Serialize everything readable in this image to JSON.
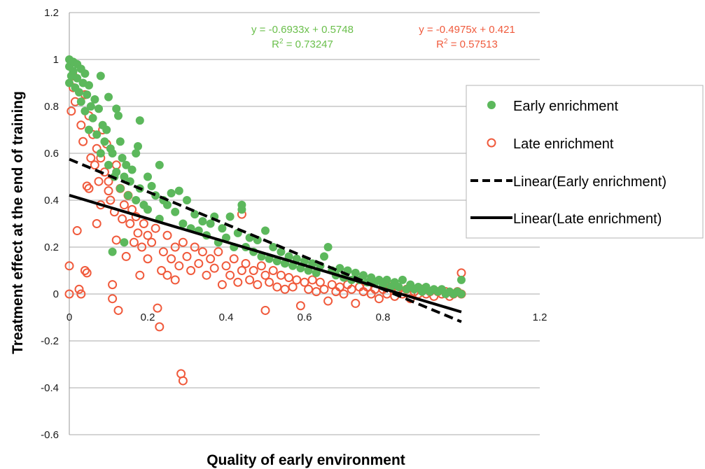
{
  "chart_data": {
    "type": "scatter",
    "title": "",
    "xlabel": "Quality of early environment",
    "ylabel": "Treatment effect at the end of training",
    "xlim": [
      0,
      1.2
    ],
    "ylim": [
      -0.6,
      1.2
    ],
    "x_ticks": [
      "0",
      "0.2",
      "0.4",
      "0.6",
      "0.8",
      "1.2"
    ],
    "y_ticks": [
      "1.2",
      "1",
      "0.8",
      "0.6",
      "0.4",
      "0.2",
      "0",
      "-0.2",
      "-0.4",
      "-0.6"
    ],
    "grid": "horizontal",
    "legend_position": "right",
    "series": [
      {
        "name": "Early enrichment",
        "marker": "filled-circle",
        "color": "#5cb85c",
        "points": [
          [
            0.0,
            1.0
          ],
          [
            0.0,
            0.97
          ],
          [
            0.0,
            0.9
          ],
          [
            0.005,
            0.93
          ],
          [
            0.01,
            0.99
          ],
          [
            0.01,
            0.95
          ],
          [
            0.015,
            0.88
          ],
          [
            0.02,
            0.98
          ],
          [
            0.02,
            0.92
          ],
          [
            0.025,
            0.86
          ],
          [
            0.03,
            0.96
          ],
          [
            0.03,
            0.82
          ],
          [
            0.035,
            0.9
          ],
          [
            0.04,
            0.94
          ],
          [
            0.04,
            0.78
          ],
          [
            0.045,
            0.85
          ],
          [
            0.05,
            0.89
          ],
          [
            0.05,
            0.7
          ],
          [
            0.055,
            0.8
          ],
          [
            0.06,
            0.75
          ],
          [
            0.065,
            0.83
          ],
          [
            0.07,
            0.68
          ],
          [
            0.075,
            0.79
          ],
          [
            0.08,
            0.93
          ],
          [
            0.08,
            0.6
          ],
          [
            0.085,
            0.72
          ],
          [
            0.09,
            0.65
          ],
          [
            0.095,
            0.7
          ],
          [
            0.1,
            0.84
          ],
          [
            0.1,
            0.55
          ],
          [
            0.105,
            0.62
          ],
          [
            0.11,
            0.6
          ],
          [
            0.11,
            0.18
          ],
          [
            0.115,
            0.5
          ],
          [
            0.12,
            0.79
          ],
          [
            0.12,
            0.52
          ],
          [
            0.125,
            0.76
          ],
          [
            0.13,
            0.65
          ],
          [
            0.13,
            0.45
          ],
          [
            0.135,
            0.58
          ],
          [
            0.14,
            0.22
          ],
          [
            0.14,
            0.5
          ],
          [
            0.145,
            0.55
          ],
          [
            0.15,
            0.42
          ],
          [
            0.155,
            0.48
          ],
          [
            0.16,
            0.53
          ],
          [
            0.17,
            0.6
          ],
          [
            0.17,
            0.4
          ],
          [
            0.175,
            0.63
          ],
          [
            0.18,
            0.74
          ],
          [
            0.18,
            0.45
          ],
          [
            0.19,
            0.38
          ],
          [
            0.2,
            0.5
          ],
          [
            0.2,
            0.36
          ],
          [
            0.21,
            0.46
          ],
          [
            0.22,
            0.42
          ],
          [
            0.23,
            0.55
          ],
          [
            0.23,
            0.32
          ],
          [
            0.24,
            0.4
          ],
          [
            0.25,
            0.38
          ],
          [
            0.26,
            0.43
          ],
          [
            0.27,
            0.35
          ],
          [
            0.28,
            0.44
          ],
          [
            0.29,
            0.3
          ],
          [
            0.3,
            0.4
          ],
          [
            0.31,
            0.28
          ],
          [
            0.32,
            0.34
          ],
          [
            0.33,
            0.27
          ],
          [
            0.34,
            0.31
          ],
          [
            0.35,
            0.25
          ],
          [
            0.36,
            0.3
          ],
          [
            0.37,
            0.33
          ],
          [
            0.38,
            0.22
          ],
          [
            0.39,
            0.28
          ],
          [
            0.4,
            0.24
          ],
          [
            0.41,
            0.33
          ],
          [
            0.42,
            0.2
          ],
          [
            0.43,
            0.26
          ],
          [
            0.44,
            0.38
          ],
          [
            0.44,
            0.36
          ],
          [
            0.45,
            0.2
          ],
          [
            0.46,
            0.24
          ],
          [
            0.47,
            0.18
          ],
          [
            0.48,
            0.23
          ],
          [
            0.49,
            0.16
          ],
          [
            0.5,
            0.27
          ],
          [
            0.51,
            0.15
          ],
          [
            0.52,
            0.2
          ],
          [
            0.53,
            0.14
          ],
          [
            0.54,
            0.18
          ],
          [
            0.55,
            0.13
          ],
          [
            0.56,
            0.16
          ],
          [
            0.57,
            0.12
          ],
          [
            0.58,
            0.15
          ],
          [
            0.59,
            0.11
          ],
          [
            0.6,
            0.14
          ],
          [
            0.61,
            0.1
          ],
          [
            0.62,
            0.13
          ],
          [
            0.63,
            0.09
          ],
          [
            0.64,
            0.12
          ],
          [
            0.65,
            0.16
          ],
          [
            0.66,
            0.2
          ],
          [
            0.67,
            0.1
          ],
          [
            0.68,
            0.08
          ],
          [
            0.69,
            0.11
          ],
          [
            0.7,
            0.07
          ],
          [
            0.71,
            0.1
          ],
          [
            0.72,
            0.06
          ],
          [
            0.73,
            0.09
          ],
          [
            0.74,
            0.06
          ],
          [
            0.75,
            0.08
          ],
          [
            0.76,
            0.05
          ],
          [
            0.77,
            0.07
          ],
          [
            0.78,
            0.05
          ],
          [
            0.79,
            0.06
          ],
          [
            0.8,
            0.04
          ],
          [
            0.81,
            0.06
          ],
          [
            0.82,
            0.03
          ],
          [
            0.83,
            0.05
          ],
          [
            0.84,
            0.03
          ],
          [
            0.85,
            0.06
          ],
          [
            0.86,
            0.02
          ],
          [
            0.87,
            0.04
          ],
          [
            0.88,
            0.02
          ],
          [
            0.89,
            0.03
          ],
          [
            0.9,
            0.01
          ],
          [
            0.91,
            0.03
          ],
          [
            0.92,
            0.01
          ],
          [
            0.93,
            0.02
          ],
          [
            0.94,
            0.01
          ],
          [
            0.95,
            0.02
          ],
          [
            0.96,
            0.0
          ],
          [
            0.97,
            0.01
          ],
          [
            0.98,
            0.0
          ],
          [
            0.99,
            0.01
          ],
          [
            1.0,
            0.06
          ],
          [
            1.0,
            0.0
          ]
        ]
      },
      {
        "name": "Late enrichment",
        "marker": "open-circle",
        "color": "#f05a3c",
        "points": [
          [
            0.0,
            0.12
          ],
          [
            0.0,
            0.0
          ],
          [
            0.005,
            0.78
          ],
          [
            0.01,
            0.93
          ],
          [
            0.01,
            0.88
          ],
          [
            0.015,
            0.82
          ],
          [
            0.02,
            0.27
          ],
          [
            0.025,
            0.02
          ],
          [
            0.03,
            0.72
          ],
          [
            0.03,
            0.0
          ],
          [
            0.035,
            0.65
          ],
          [
            0.04,
            0.85
          ],
          [
            0.04,
            0.1
          ],
          [
            0.045,
            0.46
          ],
          [
            0.045,
            0.09
          ],
          [
            0.05,
            0.76
          ],
          [
            0.05,
            0.45
          ],
          [
            0.055,
            0.58
          ],
          [
            0.06,
            0.68
          ],
          [
            0.065,
            0.55
          ],
          [
            0.07,
            0.62
          ],
          [
            0.07,
            0.3
          ],
          [
            0.075,
            0.48
          ],
          [
            0.08,
            0.58
          ],
          [
            0.08,
            0.38
          ],
          [
            0.085,
            0.7
          ],
          [
            0.09,
            0.52
          ],
          [
            0.095,
            0.64
          ],
          [
            0.1,
            0.44
          ],
          [
            0.1,
            0.48
          ],
          [
            0.105,
            0.4
          ],
          [
            0.11,
            0.04
          ],
          [
            0.11,
            -0.02
          ],
          [
            0.115,
            0.35
          ],
          [
            0.12,
            0.55
          ],
          [
            0.12,
            0.23
          ],
          [
            0.125,
            -0.07
          ],
          [
            0.13,
            0.45
          ],
          [
            0.135,
            0.32
          ],
          [
            0.14,
            0.38
          ],
          [
            0.145,
            0.16
          ],
          [
            0.15,
            0.42
          ],
          [
            0.155,
            0.3
          ],
          [
            0.16,
            0.36
          ],
          [
            0.165,
            0.22
          ],
          [
            0.17,
            0.33
          ],
          [
            0.175,
            0.26
          ],
          [
            0.18,
            0.08
          ],
          [
            0.185,
            0.2
          ],
          [
            0.19,
            0.3
          ],
          [
            0.2,
            0.25
          ],
          [
            0.2,
            0.15
          ],
          [
            0.21,
            0.22
          ],
          [
            0.22,
            0.28
          ],
          [
            0.225,
            -0.06
          ],
          [
            0.23,
            -0.14
          ],
          [
            0.235,
            0.1
          ],
          [
            0.24,
            0.18
          ],
          [
            0.25,
            0.08
          ],
          [
            0.25,
            0.25
          ],
          [
            0.26,
            0.15
          ],
          [
            0.27,
            0.2
          ],
          [
            0.27,
            0.06
          ],
          [
            0.28,
            0.12
          ],
          [
            0.285,
            -0.34
          ],
          [
            0.29,
            -0.37
          ],
          [
            0.29,
            0.22
          ],
          [
            0.3,
            0.16
          ],
          [
            0.31,
            0.1
          ],
          [
            0.32,
            0.2
          ],
          [
            0.33,
            0.13
          ],
          [
            0.34,
            0.18
          ],
          [
            0.35,
            0.08
          ],
          [
            0.36,
            0.15
          ],
          [
            0.37,
            0.11
          ],
          [
            0.38,
            0.18
          ],
          [
            0.39,
            0.04
          ],
          [
            0.4,
            0.12
          ],
          [
            0.41,
            0.08
          ],
          [
            0.42,
            0.15
          ],
          [
            0.43,
            0.05
          ],
          [
            0.44,
            0.34
          ],
          [
            0.44,
            0.1
          ],
          [
            0.45,
            0.13
          ],
          [
            0.46,
            0.06
          ],
          [
            0.47,
            0.1
          ],
          [
            0.48,
            0.04
          ],
          [
            0.49,
            0.12
          ],
          [
            0.5,
            -0.07
          ],
          [
            0.5,
            0.08
          ],
          [
            0.51,
            0.05
          ],
          [
            0.52,
            0.1
          ],
          [
            0.53,
            0.03
          ],
          [
            0.54,
            0.08
          ],
          [
            0.55,
            0.02
          ],
          [
            0.56,
            0.07
          ],
          [
            0.57,
            0.03
          ],
          [
            0.58,
            0.06
          ],
          [
            0.59,
            -0.05
          ],
          [
            0.6,
            0.05
          ],
          [
            0.61,
            0.02
          ],
          [
            0.62,
            0.06
          ],
          [
            0.63,
            0.01
          ],
          [
            0.64,
            0.05
          ],
          [
            0.65,
            0.02
          ],
          [
            0.66,
            -0.03
          ],
          [
            0.67,
            0.04
          ],
          [
            0.68,
            0.01
          ],
          [
            0.69,
            0.03
          ],
          [
            0.7,
            0.0
          ],
          [
            0.71,
            0.04
          ],
          [
            0.72,
            0.02
          ],
          [
            0.73,
            -0.04
          ],
          [
            0.74,
            0.03
          ],
          [
            0.75,
            0.01
          ],
          [
            0.76,
            0.03
          ],
          [
            0.77,
            0.0
          ],
          [
            0.78,
            0.02
          ],
          [
            0.79,
            -0.02
          ],
          [
            0.8,
            0.02
          ],
          [
            0.81,
            0.0
          ],
          [
            0.82,
            0.03
          ],
          [
            0.83,
            -0.01
          ],
          [
            0.84,
            0.02
          ],
          [
            0.85,
            0.0
          ],
          [
            0.86,
            0.02
          ],
          [
            0.87,
            -0.02
          ],
          [
            0.88,
            0.01
          ],
          [
            0.89,
            0.0
          ],
          [
            0.9,
            0.02
          ],
          [
            0.91,
            0.0
          ],
          [
            0.92,
            0.01
          ],
          [
            0.93,
            -0.01
          ],
          [
            0.94,
            0.01
          ],
          [
            0.95,
            0.0
          ],
          [
            0.96,
            0.01
          ],
          [
            0.97,
            -0.01
          ],
          [
            0.98,
            0.0
          ],
          [
            0.99,
            0.01
          ],
          [
            1.0,
            0.09
          ],
          [
            1.0,
            0.0
          ]
        ]
      },
      {
        "name": "Linear(Early enrichment)",
        "type": "line",
        "style": "dashed",
        "color": "#000000",
        "slope": -0.6933,
        "intercept": 0.5748,
        "x_range": [
          0,
          1
        ],
        "equation": "y = -0.6933x + 0.5748",
        "r2_label": "R",
        "r2_sup": "2",
        "r2_value": " = 0.73247",
        "label_color": "#6abf4b"
      },
      {
        "name": "Linear(Late enrichment)",
        "type": "line",
        "style": "solid",
        "color": "#000000",
        "slope": -0.4975,
        "intercept": 0.421,
        "x_range": [
          0,
          1
        ],
        "equation": "y = -0.4975x + 0.421",
        "r2_label": "R",
        "r2_sup": "2",
        "r2_value": " = 0.57513",
        "label_color": "#f05a3c"
      }
    ]
  }
}
